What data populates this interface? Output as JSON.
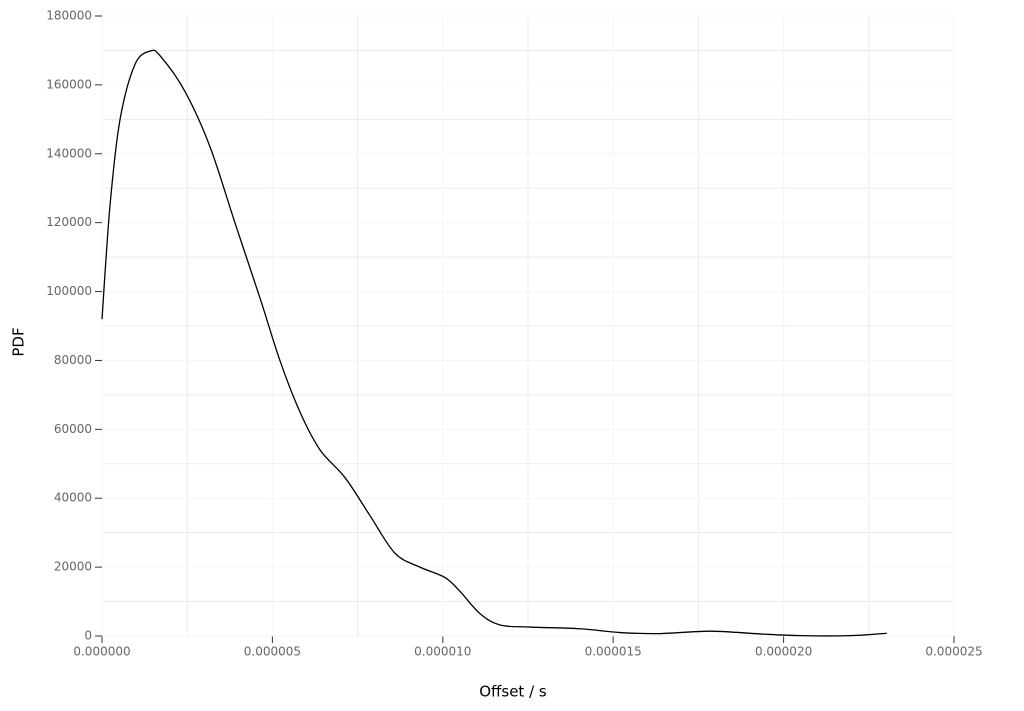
{
  "chart_data": {
    "type": "line",
    "x_label": "Offset / s",
    "y_label": "PDF",
    "x": [
      0,
      2.35e-07,
      5.3e-07,
      9.7e-07,
      1.41e-06,
      1.7e-06,
      2.44e-06,
      3.17e-06,
      3.9e-06,
      4.64e-06,
      5.22e-06,
      5.81e-06,
      6.4e-06,
      7.13e-06,
      7.86e-06,
      8.6e-06,
      9.33e-06,
      1.006e-05,
      1.05e-05,
      1.109e-05,
      1.168e-05,
      1.256e-05,
      1.402e-05,
      1.52e-05,
      1.637e-05,
      1.784e-05,
      1.931e-05,
      2.048e-05,
      2.195e-05,
      2.303e-05
    ],
    "series": [
      {
        "color": "#000000",
        "values": [
          92000,
          125000,
          150000,
          166000,
          169800,
          168500,
          158000,
          142000,
          120000,
          98000,
          80000,
          65000,
          54000,
          46000,
          35000,
          24000,
          20000,
          17000,
          13000,
          6500,
          3200,
          2600,
          2100,
          1000,
          700,
          1400,
          600,
          100,
          100,
          800
        ]
      }
    ],
    "xlim": [
      0,
      2.5e-05
    ],
    "xticks": [
      {
        "value": 0,
        "label": "0.000000"
      },
      {
        "value": 5e-06,
        "label": "0.000005"
      },
      {
        "value": 1e-05,
        "label": "0.000010"
      },
      {
        "value": 1.5e-05,
        "label": "0.000015"
      },
      {
        "value": 2e-05,
        "label": "0.000020"
      },
      {
        "value": 2.5e-05,
        "label": "0.000025"
      }
    ],
    "ylim": [
      0,
      180000
    ],
    "yticks": [
      0,
      20000,
      40000,
      60000,
      80000,
      100000,
      120000,
      140000,
      160000,
      180000
    ],
    "grid": true
  }
}
